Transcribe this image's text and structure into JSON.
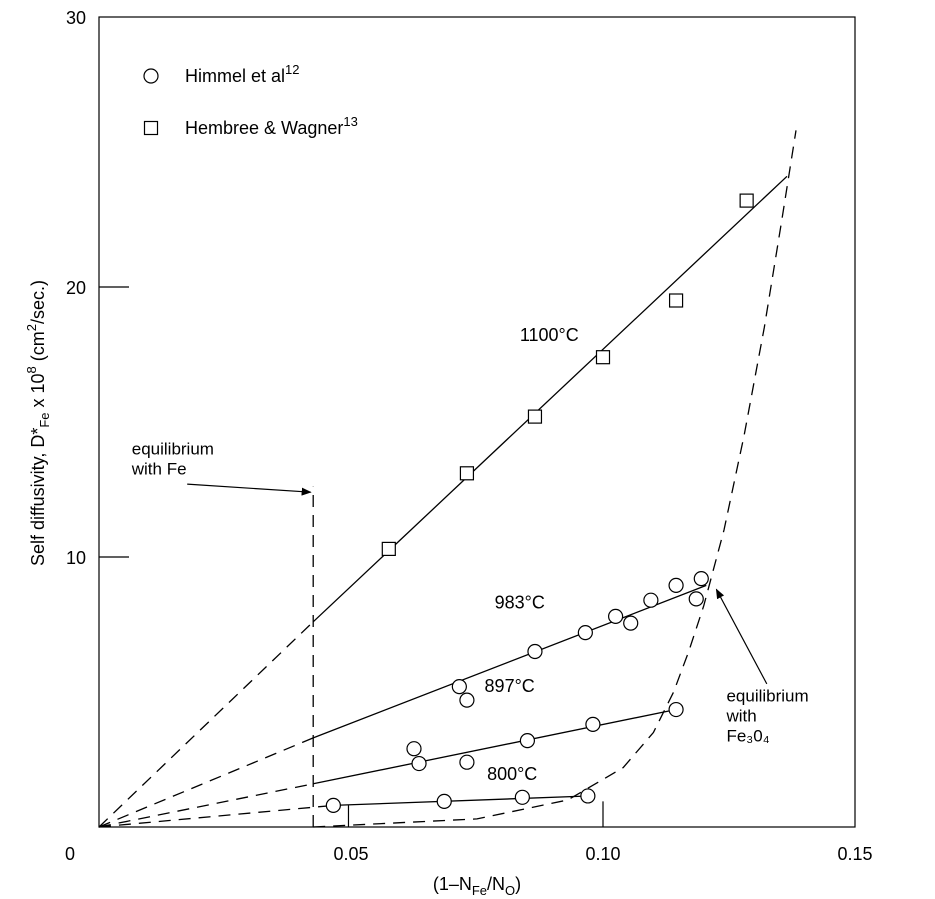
{
  "chart_data": {
    "type": "scatter",
    "xlim": [
      0,
      0.15
    ],
    "ylim": [
      0,
      30
    ],
    "x_ticks": [
      0,
      0.05,
      0.1,
      0.15
    ],
    "x_tick_labels": [
      "0",
      "0.05",
      "0.10",
      "0.15"
    ],
    "y_ticks": [
      10,
      20,
      30
    ],
    "y_tick_labels": [
      "10",
      "20",
      "30"
    ],
    "xlabel": {
      "prefix": "(1–N",
      "sub1": "Fe",
      "mid": "/N",
      "sub2": "O",
      "suffix": ")"
    },
    "ylabel": {
      "prefix": "Self diffusivity, D*",
      "sub": "Fe",
      "mid": " x 10",
      "sup1": "8",
      "mid2": " (cm",
      "sup2": "2",
      "suffix": "/sec.)"
    },
    "legend": [
      {
        "marker": "circle",
        "text": "Himmel et al",
        "sup": "12"
      },
      {
        "marker": "square",
        "text": "Hembree & Wagner",
        "sup": "13"
      }
    ],
    "series": [
      {
        "name": "Himmel et al",
        "marker": "circle",
        "points": [
          [
            0.0465,
            0.8
          ],
          [
            0.0685,
            0.95
          ],
          [
            0.084,
            1.1
          ],
          [
            0.097,
            1.15
          ],
          [
            0.0625,
            2.9
          ],
          [
            0.0635,
            2.35
          ],
          [
            0.073,
            2.4
          ],
          [
            0.085,
            3.2
          ],
          [
            0.098,
            3.8
          ],
          [
            0.1145,
            4.35
          ],
          [
            0.0715,
            5.2
          ],
          [
            0.073,
            4.7
          ],
          [
            0.0865,
            6.5
          ],
          [
            0.0965,
            7.2
          ],
          [
            0.1025,
            7.8
          ],
          [
            0.1055,
            7.55
          ],
          [
            0.1095,
            8.4
          ],
          [
            0.1145,
            8.95
          ],
          [
            0.1185,
            8.45
          ],
          [
            0.1195,
            9.2
          ]
        ]
      },
      {
        "name": "Hembree & Wagner",
        "marker": "square",
        "points": [
          [
            0.0575,
            10.3
          ],
          [
            0.073,
            13.1
          ],
          [
            0.0865,
            15.2
          ],
          [
            0.1,
            17.4
          ],
          [
            0.1145,
            19.5
          ],
          [
            0.1285,
            23.2
          ]
        ]
      }
    ],
    "isotherms": [
      {
        "label": "1100°C",
        "dashed": [
          [
            0,
            0
          ],
          [
            0.0425,
            7.6
          ]
        ],
        "solid": [
          [
            0.0425,
            7.6
          ],
          [
            0.1365,
            24.1
          ]
        ],
        "label_at": [
          0.0835,
          18.0
        ]
      },
      {
        "label": "983°C",
        "dashed": [
          [
            0,
            0
          ],
          [
            0.0425,
            3.3
          ]
        ],
        "solid": [
          [
            0.0425,
            3.3
          ],
          [
            0.1205,
            8.95
          ]
        ],
        "label_at": [
          0.0785,
          8.1
        ]
      },
      {
        "label": "897°C",
        "dashed": [
          [
            0,
            0
          ],
          [
            0.0425,
            1.6
          ]
        ],
        "solid": [
          [
            0.0425,
            1.6
          ],
          [
            0.1145,
            4.35
          ]
        ],
        "label_at": [
          0.0765,
          5.0
        ]
      },
      {
        "label": "800°C",
        "dashed": [
          [
            0,
            0
          ],
          [
            0.0465,
            0.8
          ]
        ],
        "solid": [
          [
            0.0465,
            0.8
          ],
          [
            0.097,
            1.15
          ]
        ],
        "label_at": [
          0.077,
          1.75
        ]
      }
    ],
    "phase_boundaries": [
      {
        "name": "equilibrium with Fe",
        "line": [
          [
            0.0425,
            0
          ],
          [
            0.0425,
            12.6
          ]
        ]
      },
      {
        "name": "equilibrium with Fe3O4",
        "curve": [
          [
            0.0425,
            0
          ],
          [
            0.075,
            0.3
          ],
          [
            0.093,
            1.0
          ],
          [
            0.104,
            2.2
          ],
          [
            0.11,
            3.5
          ],
          [
            0.114,
            5.0
          ],
          [
            0.117,
            6.5
          ],
          [
            0.12,
            8.2
          ],
          [
            0.124,
            11.0
          ],
          [
            0.128,
            14.5
          ],
          [
            0.132,
            18.5
          ],
          [
            0.1355,
            22.5
          ],
          [
            0.1383,
            25.8
          ]
        ]
      }
    ],
    "annotations": [
      {
        "lines": [
          "equilibrium",
          "with Fe"
        ],
        "at": [
          0.0065,
          13.8
        ],
        "arrow_from": [
          0.0175,
          12.7
        ],
        "arrow_to": [
          0.042,
          12.4
        ]
      },
      {
        "lines": [
          "equilibrium",
          "with",
          "Fe₃0₄"
        ],
        "at": [
          0.1245,
          4.65
        ],
        "arrow_from": [
          0.1325,
          5.3
        ],
        "arrow_to": [
          0.1225,
          8.8
        ]
      }
    ],
    "end_ticks": [
      {
        "x": 0.0495,
        "y0": 0,
        "y1": 0.8
      },
      {
        "x": 0.1,
        "y0": 0,
        "y1": 0.95
      }
    ],
    "grid": false
  }
}
